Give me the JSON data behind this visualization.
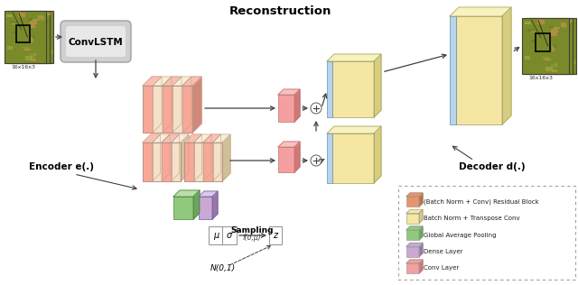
{
  "title": "Reconstruction",
  "bg_color": "#ffffff",
  "encoder_label": "Encoder e(.)",
  "decoder_label": "Decoder d(.)",
  "convlstm_label": "ConvLSTM",
  "input_label": "16x16x3",
  "output_label": "16x16x3",
  "sampling_label": "Sampling",
  "sampling_sublabel": "f(σ,μ)",
  "normal_label": "N(0,1)",
  "mu_label": "μ",
  "sigma_label": "σ",
  "z_label": "z",
  "legend_items": [
    {
      "label": "(Batch Norm + Conv) Residual Block",
      "color": "#E8956D"
    },
    {
      "label": "Batch Norm + Transpose Conv",
      "color": "#F5E6A3"
    },
    {
      "label": "Global Average Pooling",
      "color": "#90C97E"
    },
    {
      "label": "Dense Layer",
      "color": "#C9A8D4"
    },
    {
      "label": "Conv Layer",
      "color": "#F5A0A0"
    }
  ],
  "colors": {
    "encoder_stripe1": "#F9A898",
    "encoder_stripe2": "#F5DDD0",
    "encoder_side1": "#D08878",
    "encoder_side2": "#D0C0A0",
    "decoder_yellow": "#F5E6A3",
    "decoder_yellow_side": "#D8CC80",
    "decoder_yellow_top": "#F8F2C0",
    "decoder_blue": "#B8D4E8",
    "decoder_blue_side": "#80A8C8",
    "conv_pink": "#F5A0A0",
    "conv_pink_side": "#D07878",
    "conv_pink_top": "#F8C0C0",
    "green_face": "#90C97E",
    "green_side": "#68A858",
    "green_top": "#B8E0A8",
    "purple_face": "#C9A8D4",
    "purple_side": "#9878A8",
    "purple_top": "#DCC8E8",
    "convlstm_bg": "#D0D0D0",
    "arrow_color": "#404040",
    "image_main": "#8B9A3A"
  }
}
